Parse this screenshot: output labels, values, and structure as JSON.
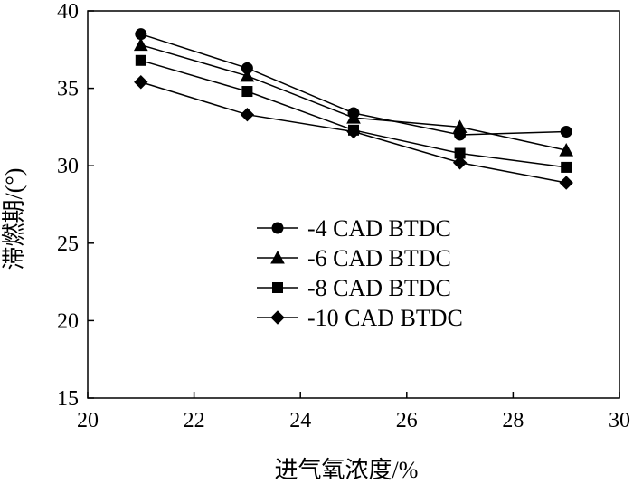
{
  "chart_data": {
    "type": "line",
    "xlabel": "进气氧浓度/%",
    "ylabel": "滞燃期/(°)",
    "xlim": [
      20,
      30
    ],
    "ylim": [
      15,
      40
    ],
    "x_ticks": [
      20,
      22,
      24,
      26,
      28,
      30
    ],
    "y_ticks": [
      15,
      20,
      25,
      30,
      35,
      40
    ],
    "x": [
      21,
      23,
      25,
      27,
      29
    ],
    "series": [
      {
        "name": "-4 CAD BTDC",
        "marker": "circle",
        "values": [
          38.5,
          36.3,
          33.4,
          32.0,
          32.2
        ]
      },
      {
        "name": "-6 CAD BTDC",
        "marker": "triangle",
        "values": [
          37.8,
          35.8,
          33.1,
          32.5,
          31.0
        ]
      },
      {
        "name": "-8 CAD BTDC",
        "marker": "square",
        "values": [
          36.8,
          34.8,
          32.3,
          30.8,
          29.9
        ]
      },
      {
        "name": "-10 CAD BTDC",
        "marker": "diamond",
        "values": [
          35.4,
          33.3,
          32.2,
          30.2,
          28.9
        ]
      }
    ],
    "legend_position": "center-left",
    "grid": false,
    "line_color": "#000000"
  }
}
